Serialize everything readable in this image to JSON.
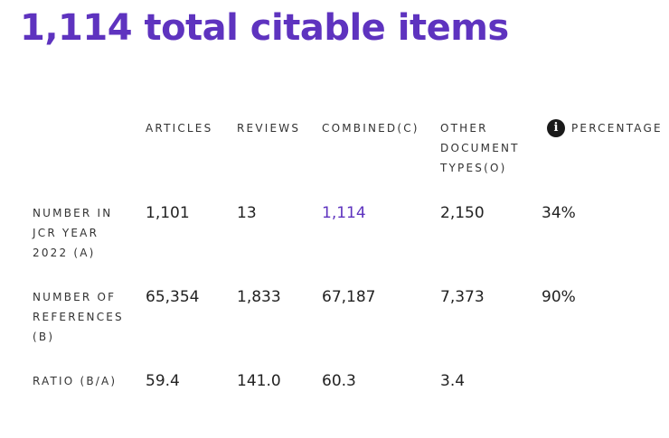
{
  "title": "1,114 total citable items",
  "table": {
    "headers": {
      "articles": "ARTICLES",
      "reviews": "REVIEWS",
      "combined": "COMBINED(C)",
      "other": "OTHER DOCUMENT TYPES(O)",
      "percentage": "PERCENTAGE"
    },
    "info_icon": "info-icon",
    "rows": [
      {
        "label": "NUMBER IN JCR YEAR 2022 (A)",
        "articles": "1,101",
        "reviews": "13",
        "combined": "1,114",
        "other": "2,150",
        "percentage": "34%"
      },
      {
        "label": "NUMBER OF REFERENCES (B)",
        "articles": "65,354",
        "reviews": "1,833",
        "combined": "67,187",
        "other": "7,373",
        "percentage": "90%"
      },
      {
        "label": "RATIO (B/A)",
        "articles": "59.4",
        "reviews": "141.0",
        "combined": "60.3",
        "other": "3.4",
        "percentage": ""
      }
    ]
  },
  "colors": {
    "accent": "#5e33bf",
    "text": "#222222",
    "icon_bg": "#1a1a1a"
  }
}
